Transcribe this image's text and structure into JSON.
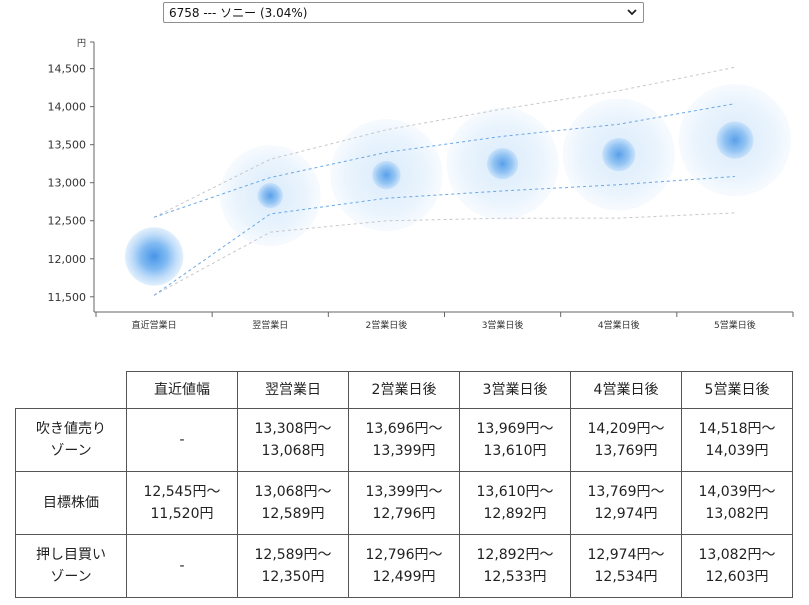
{
  "selector": {
    "selected_option": "6758 --- ソニー (3.04%)",
    "icon": "chevron-down-icon"
  },
  "chart_data": {
    "type": "scatter",
    "unit_label": "円",
    "categories": [
      "直近営業日",
      "翌営業日",
      "2営業日後",
      "3営業日後",
      "4営業日後",
      "5営業日後"
    ],
    "y_ticks": [
      "14,500",
      "14,000",
      "13,500",
      "13,000",
      "12,500",
      "12,000",
      "11,500"
    ],
    "ylim": [
      11300,
      14850
    ],
    "centers": [
      12030,
      12830,
      13100,
      13250,
      13370,
      13560
    ],
    "band_upper": [
      12545,
      13068,
      13399,
      13610,
      13769,
      14039
    ],
    "band_lower": [
      11520,
      12589,
      12796,
      12892,
      12974,
      13082
    ],
    "outer_upper": [
      12545,
      13308,
      13696,
      13969,
      14209,
      14518
    ],
    "outer_lower": [
      11520,
      12350,
      12499,
      12533,
      12534,
      12603
    ],
    "bubble_color": "#4a90e2",
    "band_line_color": "#6aa8e8",
    "outer_line_color": "#c8c8c8"
  },
  "table": {
    "headers": [
      "",
      "直近値幅",
      "翌営業日",
      "2営業日後",
      "3営業日後",
      "4営業日後",
      "5営業日後"
    ],
    "rows": [
      {
        "label": [
          "吹き値売り",
          "ゾーン"
        ],
        "cells": [
          [
            "-"
          ],
          [
            "13,308円〜",
            "13,068円"
          ],
          [
            "13,696円〜",
            "13,399円"
          ],
          [
            "13,969円〜",
            "13,610円"
          ],
          [
            "14,209円〜",
            "13,769円"
          ],
          [
            "14,518円〜",
            "14,039円"
          ]
        ]
      },
      {
        "label": [
          "目標株価"
        ],
        "cells": [
          [
            "12,545円〜",
            "11,520円"
          ],
          [
            "13,068円〜",
            "12,589円"
          ],
          [
            "13,399円〜",
            "12,796円"
          ],
          [
            "13,610円〜",
            "12,892円"
          ],
          [
            "13,769円〜",
            "12,974円"
          ],
          [
            "14,039円〜",
            "13,082円"
          ]
        ]
      },
      {
        "label": [
          "押し目買い",
          "ゾーン"
        ],
        "cells": [
          [
            "-"
          ],
          [
            "12,589円〜",
            "12,350円"
          ],
          [
            "12,796円〜",
            "12,499円"
          ],
          [
            "12,892円〜",
            "12,533円"
          ],
          [
            "12,974円〜",
            "12,534円"
          ],
          [
            "13,082円〜",
            "12,603円"
          ]
        ]
      }
    ]
  }
}
